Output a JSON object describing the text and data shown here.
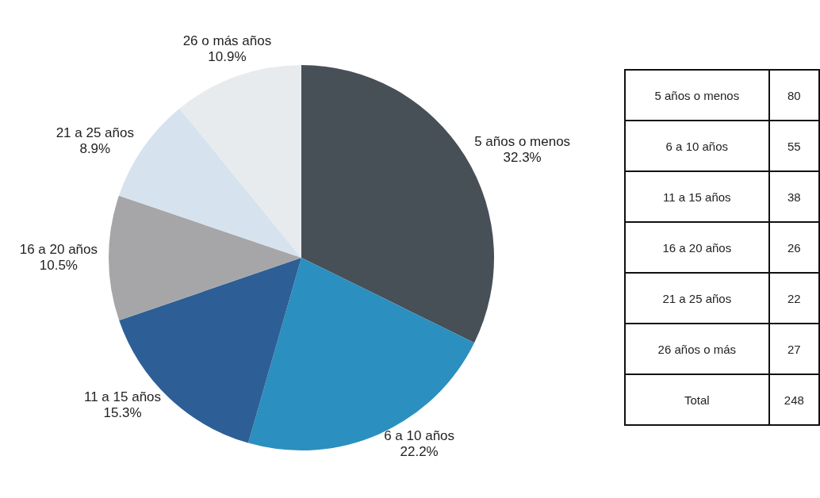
{
  "chart_data": [
    {
      "type": "pie",
      "categories": [
        "5 años o menos",
        "6 a 10 años",
        "11 a 15 años",
        "16 a 20 años",
        "21 a 25 años",
        "26 o más años"
      ],
      "values": [
        32.3,
        22.2,
        15.3,
        10.5,
        8.9,
        10.9
      ],
      "value_labels": [
        "32.3%",
        "22.2%",
        "15.3%",
        "10.5%",
        "8.9%",
        "10.9%"
      ],
      "colors": [
        "#474f57",
        "#2b8fbf",
        "#2d5f96",
        "#a6a6a8",
        "#d6e3ee",
        "#e8ebee"
      ]
    },
    {
      "type": "other",
      "categories": [
        "5 años o menos",
        "6 a 10 años",
        "11 a 15 años",
        "16 a 20 años",
        "21 a 25 años",
        "26 años o más",
        "Total"
      ],
      "values": [
        80,
        55,
        38,
        26,
        22,
        27,
        248
      ],
      "data_labels": true
    }
  ]
}
